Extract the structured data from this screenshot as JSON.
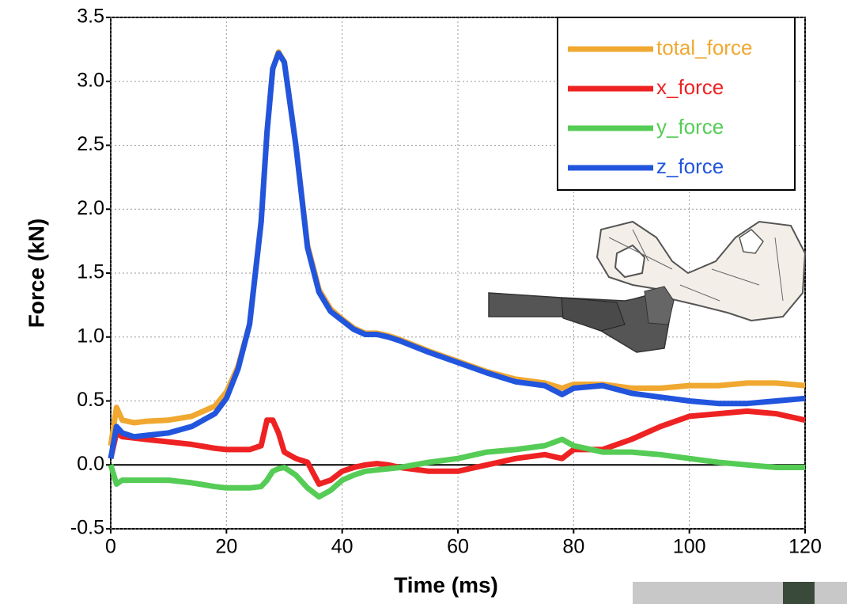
{
  "chart_data": {
    "type": "line",
    "xlabel": "Time (ms)",
    "ylabel": "Force (kN)",
    "x": [
      0,
      1,
      2,
      4,
      6,
      10,
      14,
      18,
      20,
      22,
      24,
      26,
      27,
      28,
      29,
      30,
      32,
      34,
      36,
      38,
      40,
      42,
      44,
      46,
      48,
      50,
      55,
      60,
      65,
      70,
      75,
      78,
      80,
      85,
      90,
      95,
      100,
      105,
      110,
      115,
      120
    ],
    "series": [
      {
        "name": "total_force",
        "color": "#f0a830",
        "values": [
          0.15,
          0.45,
          0.35,
          0.33,
          0.34,
          0.35,
          0.38,
          0.46,
          0.57,
          0.77,
          1.1,
          1.9,
          2.6,
          3.1,
          3.23,
          3.15,
          2.5,
          1.72,
          1.37,
          1.22,
          1.14,
          1.07,
          1.03,
          1.03,
          1.01,
          0.98,
          0.89,
          0.81,
          0.73,
          0.67,
          0.64,
          0.6,
          0.63,
          0.63,
          0.6,
          0.6,
          0.62,
          0.62,
          0.64,
          0.64,
          0.62
        ]
      },
      {
        "name": "x_force",
        "color": "#ee2222",
        "values": [
          0.05,
          0.25,
          0.22,
          0.21,
          0.2,
          0.18,
          0.16,
          0.13,
          0.12,
          0.12,
          0.12,
          0.15,
          0.35,
          0.35,
          0.25,
          0.1,
          0.05,
          0.02,
          -0.15,
          -0.12,
          -0.05,
          -0.02,
          0.0,
          0.01,
          0.0,
          -0.02,
          -0.05,
          -0.05,
          0.0,
          0.05,
          0.08,
          0.05,
          0.12,
          0.12,
          0.2,
          0.3,
          0.38,
          0.4,
          0.42,
          0.4,
          0.35
        ]
      },
      {
        "name": "y_force",
        "color": "#55cc55",
        "values": [
          0.0,
          -0.15,
          -0.12,
          -0.12,
          -0.12,
          -0.12,
          -0.14,
          -0.17,
          -0.18,
          -0.18,
          -0.18,
          -0.17,
          -0.12,
          -0.05,
          -0.03,
          -0.02,
          -0.08,
          -0.18,
          -0.25,
          -0.2,
          -0.12,
          -0.08,
          -0.05,
          -0.04,
          -0.03,
          -0.02,
          0.02,
          0.05,
          0.1,
          0.12,
          0.15,
          0.2,
          0.15,
          0.1,
          0.1,
          0.08,
          0.05,
          0.02,
          0.0,
          -0.02,
          -0.02
        ]
      },
      {
        "name": "z_force",
        "color": "#2255dd",
        "values": [
          0.05,
          0.3,
          0.25,
          0.22,
          0.23,
          0.25,
          0.3,
          0.4,
          0.52,
          0.75,
          1.1,
          1.9,
          2.6,
          3.1,
          3.22,
          3.15,
          2.5,
          1.7,
          1.35,
          1.2,
          1.13,
          1.06,
          1.02,
          1.02,
          1.0,
          0.97,
          0.88,
          0.8,
          0.72,
          0.65,
          0.62,
          0.55,
          0.6,
          0.62,
          0.56,
          0.53,
          0.5,
          0.48,
          0.48,
          0.5,
          0.52
        ]
      }
    ],
    "xlim": [
      0,
      120
    ],
    "xticks": [
      0,
      20,
      40,
      60,
      80,
      100,
      120
    ],
    "ylim": [
      -0.5,
      3.5
    ],
    "yticks": [
      -0.5,
      {
        "value": 0,
        "label": "0.0"
      },
      0.5,
      {
        "value": 1,
        "label": "1.0"
      },
      1.5,
      {
        "value": 2,
        "label": "2.0"
      },
      2.5,
      {
        "value": 3,
        "label": "3.0"
      },
      3.5
    ],
    "grid": true,
    "legend": "upper right"
  }
}
